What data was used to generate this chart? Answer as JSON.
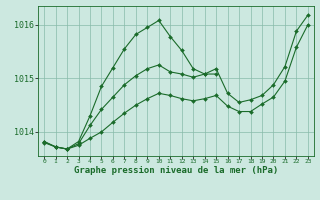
{
  "background_color": "#cce8e0",
  "grid_color": "#88bbaa",
  "line_color": "#1a6b2a",
  "marker_color": "#1a6b2a",
  "xlabel": "Graphe pression niveau de la mer (hPa)",
  "xlabel_fontsize": 6.5,
  "yticks": [
    1014,
    1015,
    1016
  ],
  "xlim": [
    -0.5,
    23.5
  ],
  "ylim": [
    1013.55,
    1016.35
  ],
  "series": [
    {
      "x": [
        0,
        1,
        2,
        3,
        4,
        5,
        6,
        7,
        8,
        9,
        10,
        11,
        12,
        13,
        14,
        15
      ],
      "y": [
        1013.8,
        1013.72,
        1013.68,
        1013.82,
        1014.3,
        1014.85,
        1015.2,
        1015.55,
        1015.82,
        1015.95,
        1016.08,
        1015.78,
        1015.52,
        1015.18,
        1015.08,
        1015.08
      ]
    },
    {
      "x": [
        0,
        1,
        2,
        3,
        4,
        5,
        6,
        7,
        8,
        9,
        10,
        11,
        12,
        13,
        14,
        15,
        16,
        17,
        18,
        19,
        20,
        21,
        22,
        23
      ],
      "y": [
        1013.82,
        1013.72,
        1013.68,
        1013.75,
        1013.88,
        1014.0,
        1014.18,
        1014.35,
        1014.5,
        1014.62,
        1014.72,
        1014.68,
        1014.62,
        1014.58,
        1014.62,
        1014.68,
        1014.48,
        1014.38,
        1014.38,
        1014.52,
        1014.65,
        1014.95,
        1015.58,
        1016.0
      ]
    },
    {
      "x": [
        0,
        1,
        2,
        3,
        4,
        5,
        6,
        7,
        8,
        9,
        10,
        11,
        12,
        13,
        14,
        15,
        16,
        17,
        18,
        19,
        20,
        21,
        22,
        23
      ],
      "y": [
        1013.82,
        1013.72,
        1013.68,
        1013.78,
        1014.12,
        1014.42,
        1014.65,
        1014.88,
        1015.05,
        1015.18,
        1015.25,
        1015.12,
        1015.08,
        1015.02,
        1015.08,
        1015.18,
        1014.72,
        1014.55,
        1014.6,
        1014.68,
        1014.88,
        1015.22,
        1015.88,
        1016.18
      ]
    }
  ]
}
